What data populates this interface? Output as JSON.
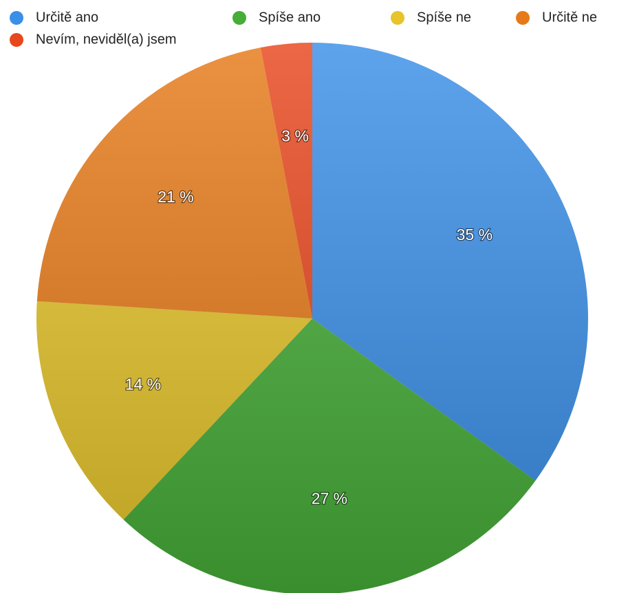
{
  "chart_data": {
    "type": "pie",
    "categories": [
      "Určitě ano",
      "Spíše ano",
      "Spíše ne",
      "Určitě ne",
      "Nevím, neviděl(a) jsem"
    ],
    "values": [
      35,
      27,
      14,
      21,
      3
    ],
    "value_labels": [
      "35 %",
      "27 %",
      "14 %",
      "21 %",
      "3 %"
    ],
    "colors": [
      "#3a8fe8",
      "#46ad38",
      "#e6c42a",
      "#e67a18",
      "#e8461c"
    ],
    "legend": "top"
  }
}
